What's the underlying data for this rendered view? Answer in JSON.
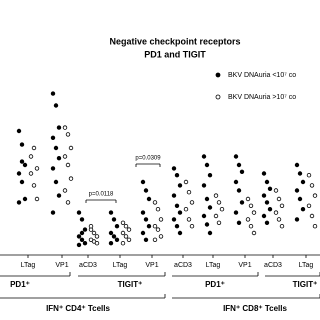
{
  "chart_data": {
    "type": "scatter",
    "title": "Negative checkpoint receptors",
    "subtitle": "PD1 and TIGIT",
    "categories": [
      "LTag",
      "VP1",
      "aCD3",
      "LTag",
      "VP1",
      "aCD3",
      "LTag",
      "VP1",
      "aCD3",
      "LTag"
    ],
    "ylim": [
      0,
      100
    ],
    "series": [
      {
        "name": "BKV DNAuria <10⁷ co",
        "color": "#000000",
        "marker": "filled",
        "values": [
          [
            70,
            62,
            50,
            45,
            40,
            30,
            28,
            52
          ],
          [
            92,
            85,
            72,
            66,
            60,
            54,
            48,
            40,
            32,
            22
          ],
          [
            22,
            18,
            12,
            8,
            6,
            4,
            3,
            10
          ],
          [
            22,
            18,
            14,
            10,
            8,
            6,
            4
          ],
          [
            40,
            35,
            30,
            22,
            18,
            14,
            10,
            6
          ],
          [
            48,
            44,
            38,
            32,
            26,
            22,
            18,
            14,
            10
          ],
          [
            55,
            50,
            44,
            38,
            30,
            25,
            20,
            15,
            10
          ],
          [
            55,
            50,
            46,
            40,
            35,
            28,
            22,
            16
          ],
          [
            45,
            40,
            36,
            32,
            28,
            24,
            20,
            16
          ],
          [
            50,
            45,
            40,
            35,
            30,
            24,
            18
          ]
        ]
      },
      {
        "name": "BKV DNAuria >10⁷ co",
        "color": "#000000",
        "marker": "open",
        "values": [
          [
            45,
            38,
            30,
            55,
            60,
            48
          ],
          [
            72,
            68,
            60,
            55,
            50,
            42,
            35,
            28
          ],
          [
            12,
            10,
            8,
            6,
            5,
            4,
            14
          ],
          [
            16,
            14,
            12,
            10,
            8,
            6,
            4
          ],
          [
            28,
            24,
            18,
            14,
            12,
            8,
            6
          ],
          [
            40,
            34,
            28,
            24,
            18,
            14
          ],
          [
            32,
            28,
            24,
            20,
            16
          ],
          [
            30,
            26,
            22,
            18,
            14,
            10
          ],
          [
            35,
            30,
            26,
            22,
            18,
            14
          ],
          [
            44,
            38,
            32,
            26,
            20,
            14
          ]
        ]
      }
    ],
    "annotations": [
      "p=0.0118",
      "p=0.0309"
    ],
    "receptor_groups": [
      "PD1⁺",
      "TIGIT⁺",
      "PD1⁺",
      "TIGIT⁺"
    ],
    "cell_groups": [
      "IFN⁺ CD4⁺ Tcells",
      "IFN⁺ CD8⁺ Tcells"
    ]
  }
}
